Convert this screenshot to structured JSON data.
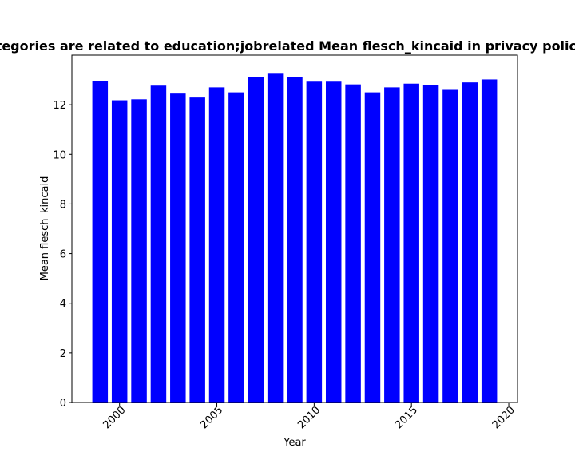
{
  "chart_data": {
    "type": "bar",
    "title": "Categories are related to education;jobrelated Mean flesch_kincaid in privacy policies",
    "xlabel": "Year",
    "ylabel": "Mean flesch_kincaid",
    "x": [
      1999,
      2000,
      2001,
      2002,
      2003,
      2004,
      2005,
      2006,
      2007,
      2008,
      2009,
      2010,
      2011,
      2012,
      2013,
      2014,
      2015,
      2016,
      2017,
      2018,
      2019
    ],
    "values": [
      12.95,
      12.18,
      12.22,
      12.77,
      12.45,
      12.29,
      12.7,
      12.5,
      13.1,
      13.25,
      13.1,
      12.93,
      12.93,
      12.82,
      12.5,
      12.7,
      12.85,
      12.8,
      12.6,
      12.9,
      13.02
    ],
    "xlim": [
      1997.55,
      2020.45
    ],
    "ylim": [
      0,
      14.0
    ],
    "xticks": [
      2000,
      2005,
      2010,
      2015,
      2020
    ],
    "yticks": [
      0,
      2,
      4,
      6,
      8,
      10,
      12
    ],
    "bar_color": "#0000ff",
    "grid": false,
    "legend": "none"
  }
}
